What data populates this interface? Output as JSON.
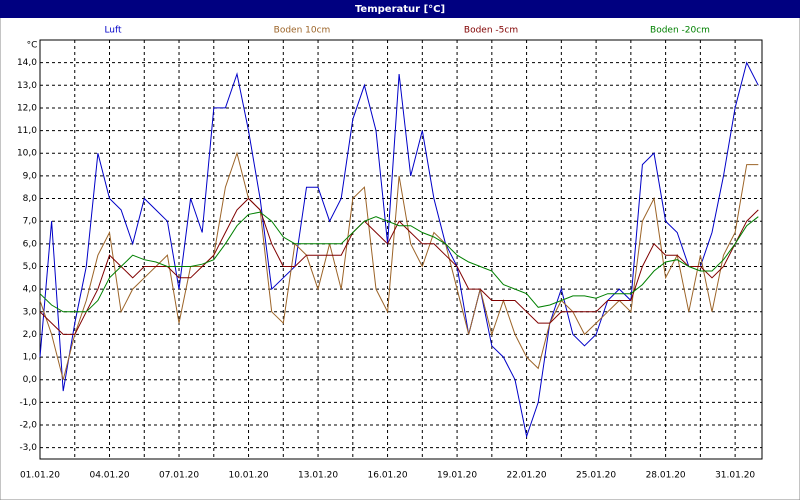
{
  "chart_data": {
    "type": "line",
    "title": "Temperatur [°C]",
    "y_unit": "°C",
    "x": [
      0,
      0.5,
      1,
      1.5,
      2,
      2.5,
      3,
      3.5,
      4,
      4.5,
      5,
      5.5,
      6,
      6.5,
      7,
      7.5,
      8,
      8.5,
      9,
      9.5,
      10,
      10.5,
      11,
      11.5,
      12,
      12.5,
      13,
      13.5,
      14,
      14.5,
      15,
      15.5,
      16,
      16.5,
      17,
      17.5,
      18,
      18.5,
      19,
      19.5,
      20,
      20.5,
      21,
      21.5,
      22,
      22.5,
      23,
      23.5,
      24,
      24.5,
      25,
      25.5,
      26,
      26.5,
      27,
      27.5,
      28,
      28.5,
      29,
      29.5,
      30,
      30.5,
      31
    ],
    "series": [
      {
        "name": "Luft",
        "color": "#0000c8",
        "values": [
          1.0,
          7.0,
          -0.5,
          2.5,
          5,
          10,
          8,
          7.5,
          6,
          8,
          7.5,
          7,
          4,
          8,
          6.5,
          12,
          12,
          13.5,
          11,
          8,
          4,
          4.5,
          5,
          8.5,
          8.5,
          7,
          8,
          11.5,
          13,
          11,
          6,
          13.5,
          9,
          11,
          8,
          6,
          5,
          2,
          4,
          1.5,
          1,
          0,
          -2.5,
          -1,
          2.5,
          4,
          2,
          1.5,
          2,
          3.5,
          4,
          3.5,
          9.5,
          10,
          7,
          6.5,
          5,
          5,
          6.5,
          9,
          12,
          14,
          13
        ]
      },
      {
        "name": "Boden 10cm",
        "color": "#9c6428",
        "values": [
          3.5,
          2,
          0,
          2,
          3.5,
          5.5,
          6.5,
          3,
          4,
          4.5,
          5,
          5.5,
          2.5,
          5,
          5,
          5.5,
          8.5,
          10,
          8,
          7.5,
          3,
          2.5,
          6,
          5.5,
          4,
          6,
          4,
          8,
          8.5,
          4,
          3,
          9,
          6,
          5,
          6.5,
          6,
          4,
          2,
          4,
          2,
          3.5,
          2,
          1,
          0.5,
          2.5,
          3.5,
          3,
          2,
          2.5,
          3,
          3.5,
          3,
          7,
          8,
          4.5,
          5.5,
          3,
          5.5,
          3,
          5.5,
          6.5,
          9.5,
          9.5
        ]
      },
      {
        "name": "Boden -5cm",
        "color": "#800000",
        "values": [
          3.0,
          2.5,
          2.0,
          2.0,
          3,
          4,
          5.5,
          5,
          4.5,
          5,
          5,
          5,
          4.5,
          4.5,
          5,
          5.5,
          6.5,
          7.5,
          8,
          7.5,
          6,
          5,
          5,
          5.5,
          5.5,
          5.5,
          5.5,
          6.5,
          7,
          6.5,
          6,
          7,
          6.5,
          6,
          6,
          5.5,
          5,
          4,
          4,
          3.5,
          3.5,
          3.5,
          3.0,
          2.5,
          2.5,
          3,
          3,
          3,
          3,
          3.5,
          3.5,
          3.5,
          5,
          6,
          5.5,
          5.5,
          5,
          5,
          4.5,
          5,
          6,
          7,
          7.5
        ]
      },
      {
        "name": "Boden -20cm",
        "color": "#008000",
        "values": [
          3.8,
          3.3,
          3.0,
          3.0,
          3.0,
          3.5,
          4.5,
          5,
          5.5,
          5.3,
          5.2,
          5.0,
          5.0,
          5.0,
          5.1,
          5.3,
          6.0,
          6.8,
          7.3,
          7.4,
          7.0,
          6.3,
          6.0,
          6.0,
          6.0,
          6.0,
          6.0,
          6.5,
          7.0,
          7.2,
          7.0,
          6.8,
          6.8,
          6.5,
          6.3,
          6.0,
          5.5,
          5.2,
          5.0,
          4.8,
          4.2,
          4.0,
          3.8,
          3.2,
          3.3,
          3.5,
          3.7,
          3.7,
          3.6,
          3.8,
          3.8,
          3.8,
          4.2,
          4.8,
          5.2,
          5.3,
          5.0,
          4.8,
          4.8,
          5.3,
          6.0,
          6.8,
          7.2
        ]
      }
    ],
    "xlim": [
      0,
      31.16
    ],
    "xticks": [
      {
        "value": 0,
        "label": "01.01.20"
      },
      {
        "value": 3,
        "label": "04.01.20"
      },
      {
        "value": 6,
        "label": "07.01.20"
      },
      {
        "value": 9,
        "label": "10.01.20"
      },
      {
        "value": 12,
        "label": "13.01.20"
      },
      {
        "value": 15,
        "label": "16.01.20"
      },
      {
        "value": 18,
        "label": "19.01.20"
      },
      {
        "value": 21,
        "label": "22.01.20"
      },
      {
        "value": 24,
        "label": "25.01.20"
      },
      {
        "value": 27,
        "label": "28.01.20"
      },
      {
        "value": 30,
        "label": "31.01.20"
      }
    ],
    "xminor": [
      1.5,
      4.5,
      7.5,
      10.5,
      13.5,
      16.5,
      19.5,
      22.5,
      25.5,
      28.5
    ],
    "ylim": [
      -3.5,
      15
    ],
    "yticks": [
      {
        "value": -3,
        "label": "-3,0"
      },
      {
        "value": -2,
        "label": "-2,0"
      },
      {
        "value": -1,
        "label": "-1,0"
      },
      {
        "value": 0,
        "label": "0,0"
      },
      {
        "value": 1,
        "label": "1,0"
      },
      {
        "value": 2,
        "label": "2,0"
      },
      {
        "value": 3,
        "label": "3,0"
      },
      {
        "value": 4,
        "label": "4,0"
      },
      {
        "value": 5,
        "label": "5,0"
      },
      {
        "value": 6,
        "label": "6,0"
      },
      {
        "value": 7,
        "label": "7,0"
      },
      {
        "value": 8,
        "label": "8,0"
      },
      {
        "value": 9,
        "label": "9,0"
      },
      {
        "value": 10,
        "label": "10,0"
      },
      {
        "value": 11,
        "label": "11,0"
      },
      {
        "value": 12,
        "label": "12,0"
      },
      {
        "value": 13,
        "label": "13,0"
      },
      {
        "value": 14,
        "label": "14,0"
      }
    ],
    "grid": true
  }
}
